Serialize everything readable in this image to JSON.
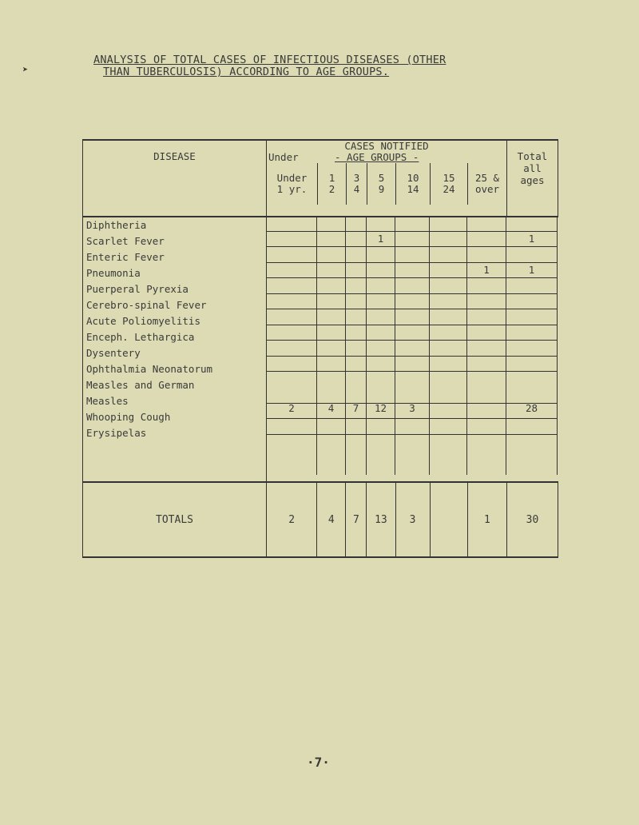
{
  "title": {
    "line1": "ANALYSIS OF TOTAL CASES OF INFECTIOUS DISEASES (OTHER",
    "line2": "THAN TUBERCULOSIS) ACCORDING TO AGE GROUPS."
  },
  "header": {
    "disease": "DISEASE",
    "cases_notified": "CASES NOTIFIED",
    "age_groups": "- AGE GROUPS -",
    "under_top": "Under",
    "total": [
      "Total",
      "all",
      "ages"
    ],
    "columns": [
      [
        "Under",
        "1 yr."
      ],
      [
        "1",
        "2"
      ],
      [
        "3",
        "4"
      ],
      [
        "5",
        "9"
      ],
      [
        "10",
        "14"
      ],
      [
        "15",
        "24"
      ],
      [
        "25 &",
        "over"
      ]
    ]
  },
  "diseases": [
    "Diphtheria",
    "Scarlet Fever",
    "Enteric Fever",
    "Pneumonia",
    "Puerperal Pyrexia",
    "Cerebro-spinal Fever",
    "Acute Poliomyelitis",
    "Enceph. Lethargica",
    "Dysentery",
    "Ophthalmia Neonatorum",
    "Measles and German Measles",
    "Whooping Cough",
    "Erysipelas"
  ],
  "rows": [
    [
      "",
      "",
      "",
      "",
      "",
      "",
      "",
      ""
    ],
    [
      "",
      "",
      "",
      "1",
      "",
      "",
      "",
      "1"
    ],
    [
      "",
      "",
      "",
      "",
      "",
      "",
      "",
      ""
    ],
    [
      "",
      "",
      "",
      "",
      "",
      "",
      "1",
      "1"
    ],
    [
      "",
      "",
      "",
      "",
      "",
      "",
      "",
      ""
    ],
    [
      "",
      "",
      "",
      "",
      "",
      "",
      "",
      ""
    ],
    [
      "",
      "",
      "",
      "",
      "",
      "",
      "",
      ""
    ],
    [
      "",
      "",
      "",
      "",
      "",
      "",
      "",
      ""
    ],
    [
      "",
      "",
      "",
      "",
      "",
      "",
      "",
      ""
    ],
    [
      "",
      "",
      "",
      "",
      "",
      "",
      "",
      ""
    ],
    [
      "",
      "",
      "",
      "",
      "",
      "",
      "",
      ""
    ],
    [
      "2",
      "4",
      "7",
      "12",
      "3",
      "",
      "",
      "28"
    ],
    [
      "",
      "",
      "",
      "",
      "",
      "",
      "",
      ""
    ]
  ],
  "totals": {
    "label": "TOTALS",
    "values": [
      "2",
      "4",
      "7",
      "13",
      "3",
      "",
      "1",
      "30"
    ]
  },
  "page_number": "·7·"
}
